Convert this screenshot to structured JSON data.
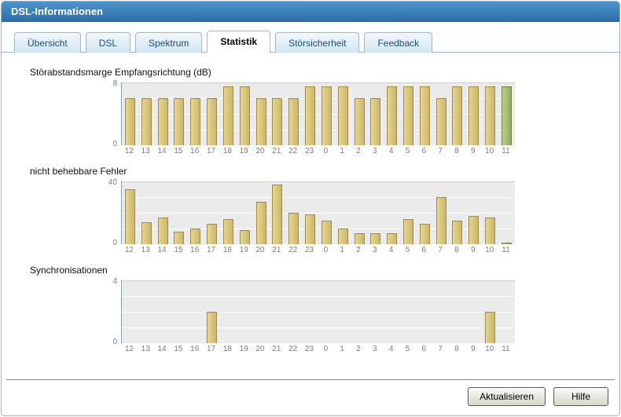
{
  "window": {
    "title": "DSL-Informationen"
  },
  "tabs": [
    {
      "label": "Übersicht",
      "active": false
    },
    {
      "label": "DSL",
      "active": false
    },
    {
      "label": "Spektrum",
      "active": false
    },
    {
      "label": "Statistik",
      "active": true
    },
    {
      "label": "Störsicherheit",
      "active": false
    },
    {
      "label": "Feedback",
      "active": false
    }
  ],
  "buttons": {
    "refresh_label": "Aktualisieren",
    "help_label": "Hilfe"
  },
  "colors": {
    "bar_fill_light": "#e7d493",
    "bar_fill_dark": "#ccb768",
    "bar_border": "#9c8c48",
    "bar_current_fill_light": "#bccf93",
    "bar_current_fill_dark": "#90aa5e",
    "bar_current_border": "#6d8542"
  },
  "chart_data": [
    {
      "type": "bar",
      "title": "Störabstandsmarge Empfangsrichtung (dB)",
      "categories": [
        "12",
        "13",
        "14",
        "15",
        "16",
        "17",
        "18",
        "19",
        "20",
        "21",
        "22",
        "23",
        "0",
        "1",
        "2",
        "3",
        "4",
        "5",
        "6",
        "7",
        "8",
        "9",
        "10",
        "11"
      ],
      "values": [
        6,
        6,
        6,
        6,
        6,
        6,
        7.5,
        7.5,
        6,
        6,
        6,
        7.5,
        7.5,
        7.5,
        6,
        6,
        7.5,
        7.5,
        7.5,
        6,
        7.5,
        7.5,
        7.5,
        7.5
      ],
      "ylim": [
        0,
        8
      ],
      "yticks": [
        0,
        8
      ],
      "grid": true,
      "highlight_last": true
    },
    {
      "type": "bar",
      "title": "nicht behebbare Fehler",
      "categories": [
        "12",
        "13",
        "14",
        "15",
        "16",
        "17",
        "18",
        "19",
        "20",
        "21",
        "22",
        "23",
        "0",
        "1",
        "2",
        "3",
        "4",
        "5",
        "6",
        "7",
        "8",
        "9",
        "10",
        "11"
      ],
      "values": [
        35,
        14,
        17,
        8,
        10,
        13,
        16,
        9,
        27,
        38,
        20,
        19,
        15,
        10,
        7,
        7,
        7,
        16,
        13,
        30,
        15,
        18,
        17,
        1
      ],
      "ylim": [
        0,
        40
      ],
      "yticks": [
        0,
        40
      ],
      "grid": true,
      "highlight_last": true
    },
    {
      "type": "bar",
      "title": "Synchronisationen",
      "categories": [
        "12",
        "13",
        "14",
        "15",
        "16",
        "17",
        "18",
        "19",
        "20",
        "21",
        "22",
        "23",
        "0",
        "1",
        "2",
        "3",
        "4",
        "5",
        "6",
        "7",
        "8",
        "9",
        "10",
        "11"
      ],
      "values": [
        0,
        0,
        0,
        0,
        0,
        2,
        0,
        0,
        0,
        0,
        0,
        0,
        0,
        0,
        0,
        0,
        0,
        0,
        0,
        0,
        0,
        0,
        2,
        0
      ],
      "ylim": [
        0,
        4
      ],
      "yticks": [
        0,
        4
      ],
      "grid": true,
      "highlight_last": true
    }
  ]
}
